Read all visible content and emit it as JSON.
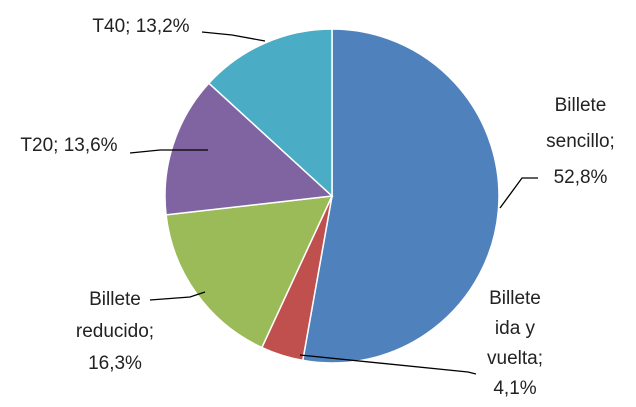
{
  "chart_data": {
    "type": "pie",
    "values": [
      52.8,
      4.1,
      16.3,
      13.6,
      13.2
    ],
    "value_labels": [
      "Billete sencillo; 52,8%",
      "Billete ida y vuelta; 4,1%",
      "Billete reducido; 16,3%",
      "T20; 13,6%",
      "T40; 13,2%"
    ],
    "colors": [
      "#4f81bd",
      "#c0504d",
      "#9bbb59",
      "#8064a2",
      "#4bacc6"
    ]
  }
}
